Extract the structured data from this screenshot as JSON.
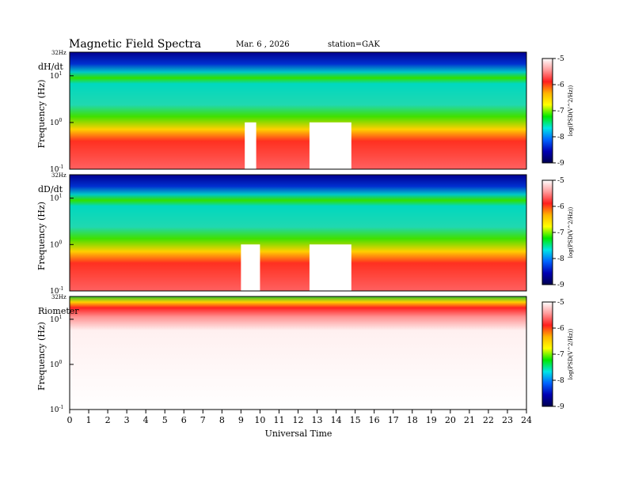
{
  "header": {
    "title": "Magnetic  Field  Spectra",
    "date": "Mar. 6   ,  2026",
    "station": "station=GAK"
  },
  "colorbar": {
    "label": "log(PSD(V^2/Hz))",
    "ticks": [
      "-5",
      "-6",
      "-7",
      "-8",
      "-9"
    ],
    "colors": [
      "#ffffff",
      "#ff9a9a",
      "#ff1e1e",
      "#ffb400",
      "#ffff00",
      "#00e800",
      "#00e6e6",
      "#0064ff",
      "#0000b4",
      "#000050"
    ]
  },
  "chart_data": [
    {
      "type": "heatmap",
      "panel": "dH/dt",
      "top_label": "32Hz",
      "ylabel": "Frequency  (Hz)",
      "y_ticks": [
        {
          "base": "10",
          "exp": "1"
        },
        {
          "base": "10",
          "exp": "0"
        },
        {
          "base": "10",
          "exp": "-1"
        }
      ],
      "y_scale": "log",
      "ylim_hz": [
        0.1,
        32
      ],
      "xlim_hours": [
        0,
        24
      ],
      "clim": [
        -9,
        -5
      ],
      "quiet_hours": [
        [
          12.6,
          14.8
        ],
        [
          9.2,
          9.8
        ]
      ]
    },
    {
      "type": "heatmap",
      "panel": "dD/dt",
      "top_label": "32Hz",
      "ylabel": "Frequency  (Hz)",
      "y_ticks": [
        {
          "base": "10",
          "exp": "1"
        },
        {
          "base": "10",
          "exp": "0"
        },
        {
          "base": "10",
          "exp": "-1"
        }
      ],
      "y_scale": "log",
      "ylim_hz": [
        0.1,
        32
      ],
      "xlim_hours": [
        0,
        24
      ],
      "clim": [
        -9,
        -5
      ],
      "quiet_hours": [
        [
          12.6,
          14.8
        ],
        [
          9.0,
          10.0
        ]
      ]
    },
    {
      "type": "heatmap",
      "panel": "Riometer",
      "top_label": "32Hz",
      "ylabel": "Frequency  (Hz)",
      "y_ticks": [
        {
          "base": "10",
          "exp": "1"
        },
        {
          "base": "10",
          "exp": "0"
        },
        {
          "base": "10",
          "exp": "-1"
        }
      ],
      "y_scale": "log",
      "ylim_hz": [
        0.1,
        32
      ],
      "xlim_hours": [
        0,
        24
      ],
      "clim": [
        -9,
        -5
      ]
    }
  ],
  "xaxis": {
    "label": "Universal Time",
    "ticks": [
      "0",
      "1",
      "2",
      "3",
      "4",
      "5",
      "6",
      "7",
      "8",
      "9",
      "10",
      "11",
      "12",
      "13",
      "14",
      "15",
      "16",
      "17",
      "18",
      "19",
      "20",
      "21",
      "22",
      "23",
      "24"
    ]
  }
}
